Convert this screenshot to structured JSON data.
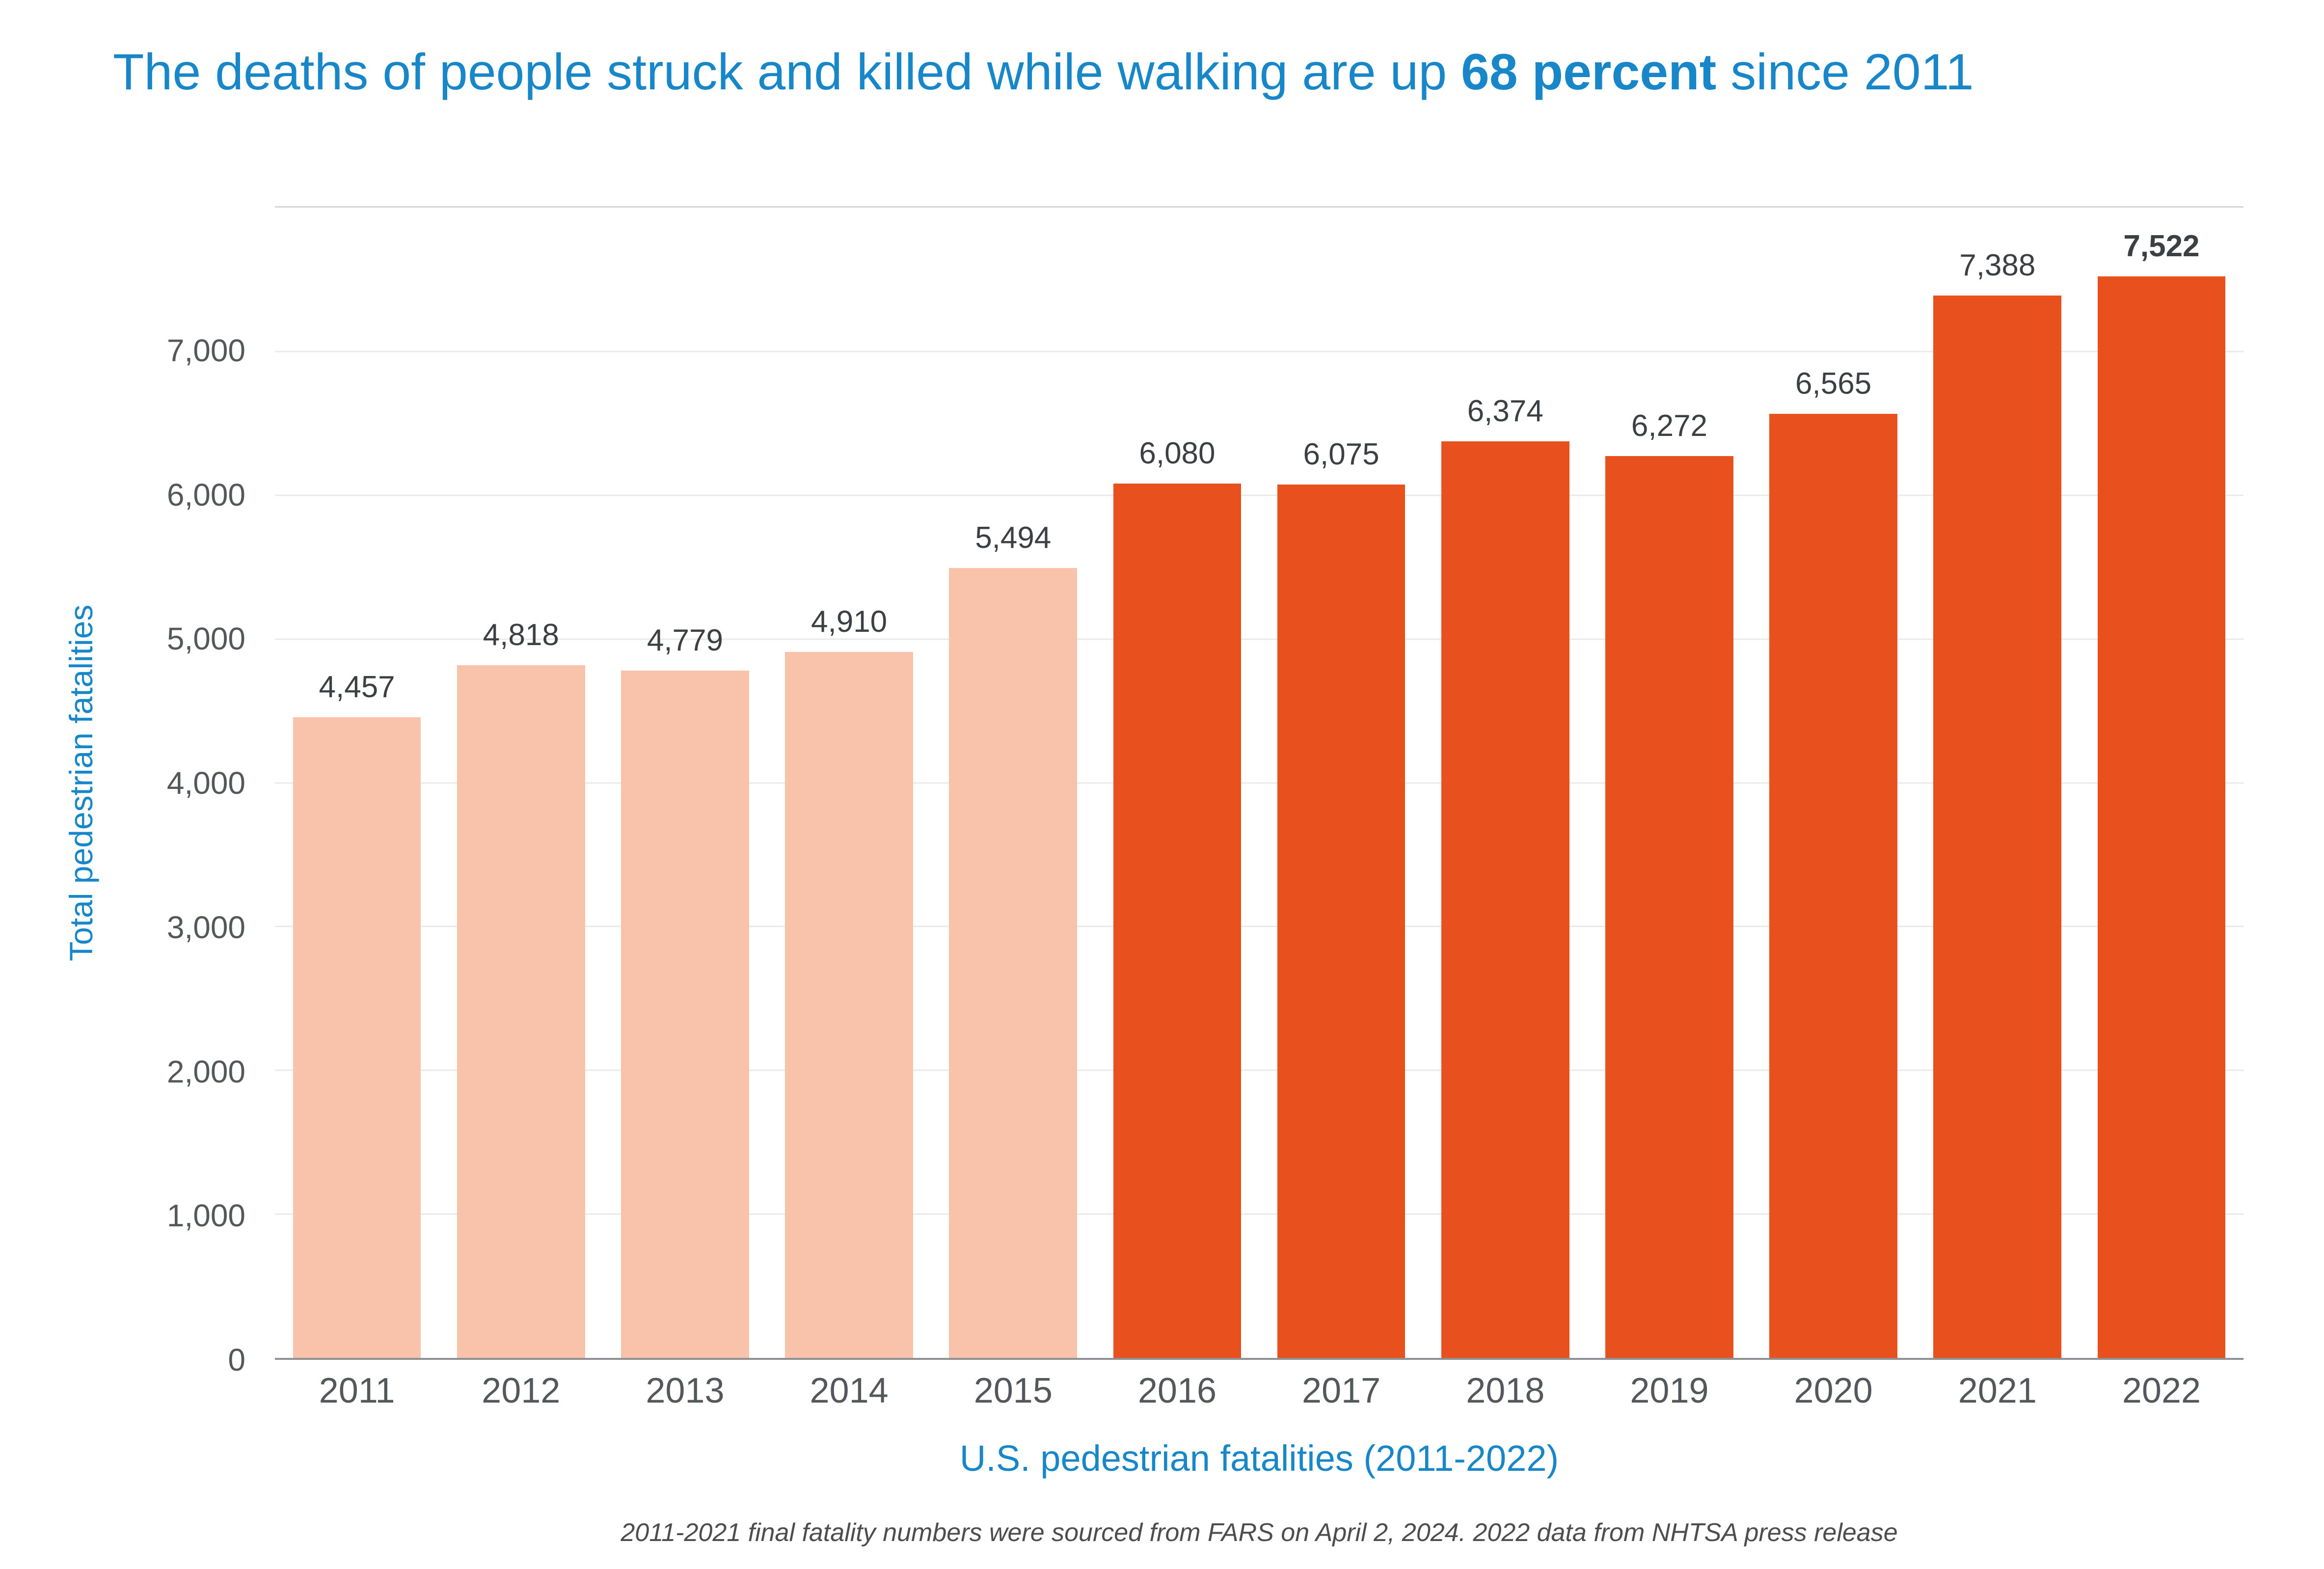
{
  "title": {
    "pre": "The deaths of people struck and killed while walking are up ",
    "bold": "68 percent",
    "post": " since 2011"
  },
  "footnote": "2011-2021 final fatality numbers were sourced from FARS on April 2, 2024.  2022 data from NHTSA press release",
  "chart_data": {
    "type": "bar",
    "title": "The deaths of people struck and killed while walking are up 68 percent since 2011",
    "categories": [
      "2011",
      "2012",
      "2013",
      "2014",
      "2015",
      "2016",
      "2017",
      "2018",
      "2019",
      "2020",
      "2021",
      "2022"
    ],
    "values": [
      4457,
      4818,
      4779,
      4910,
      5494,
      6080,
      6075,
      6374,
      6272,
      6565,
      7388,
      7522
    ],
    "value_labels": [
      "4,457",
      "4,818",
      "4,779",
      "4,910",
      "5,494",
      "6,080",
      "6,075",
      "6,374",
      "6,272",
      "6,565",
      "7,388",
      "7,522"
    ],
    "xlabel": "U.S. pedestrian fatalities (2011-2022)",
    "ylabel": "Total pedestrian fatalities",
    "ylim": [
      0,
      8000
    ],
    "yticks": [
      0,
      1000,
      2000,
      3000,
      4000,
      5000,
      6000,
      7000
    ],
    "ytick_labels": [
      "0",
      "1,000",
      "2,000",
      "3,000",
      "4,000",
      "5,000",
      "6,000",
      "7,000"
    ],
    "grid": true,
    "legend_position": "none",
    "highlight_start_index": 5,
    "bold_last_value_label": true,
    "colors": {
      "bar_light": "#f9c2ab",
      "bar_dark": "#e8501e",
      "title_blue": "#1787c9",
      "axis_text": "#54585a",
      "value_text": "#3d4043",
      "gridline": "#e9e9e9",
      "plot_top_border": "#d6d6d6",
      "baseline": "#8e9093",
      "footnote_text": "#4d4d4d"
    }
  }
}
